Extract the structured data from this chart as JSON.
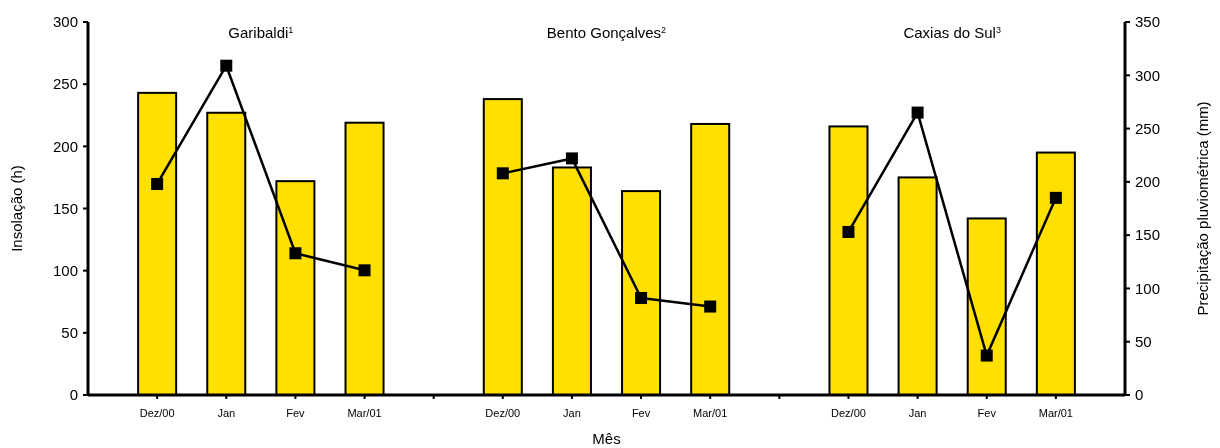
{
  "chart_data": {
    "type": "bar",
    "xlabel": "Mês",
    "ylabel": "Insolação (h)",
    "y2label": "Precipitação pluviométrica (mm)",
    "annotations": [
      "Garibaldi$^{1}$",
      "Bento Gonçalves$^{2}$",
      "Caxias do Sul$^{3}$"
    ],
    "categories": [
      "Dez/00",
      "Jan",
      "Fev",
      "Mar/01",
      null,
      "Dez/00",
      "Jan",
      "Fev",
      "Mar/01",
      null,
      "Dez/00",
      "Jan",
      "Fev",
      "Mar/01"
    ],
    "series": [
      {
        "color": "#ffe000",
        "values": [
          243,
          227,
          172,
          219,
          null,
          238,
          183,
          164,
          218,
          null,
          216,
          175,
          142,
          195
        ]
      },
      {
        "type": "line",
        "axis": "y2",
        "color": "#000000",
        "marker": "square",
        "line_style": "solid",
        "values": [
          198,
          309,
          133,
          117,
          null,
          208,
          222,
          91,
          83,
          null,
          153,
          265,
          37,
          185
        ]
      }
    ],
    "ylim": [
      0,
      300
    ],
    "yticks": [
      0,
      50,
      100,
      150,
      200,
      250,
      300
    ],
    "y2lim": [
      0,
      350
    ],
    "y2ticks": [
      0,
      50,
      100,
      150,
      200,
      250,
      300,
      350
    ],
    "grid": false
  }
}
